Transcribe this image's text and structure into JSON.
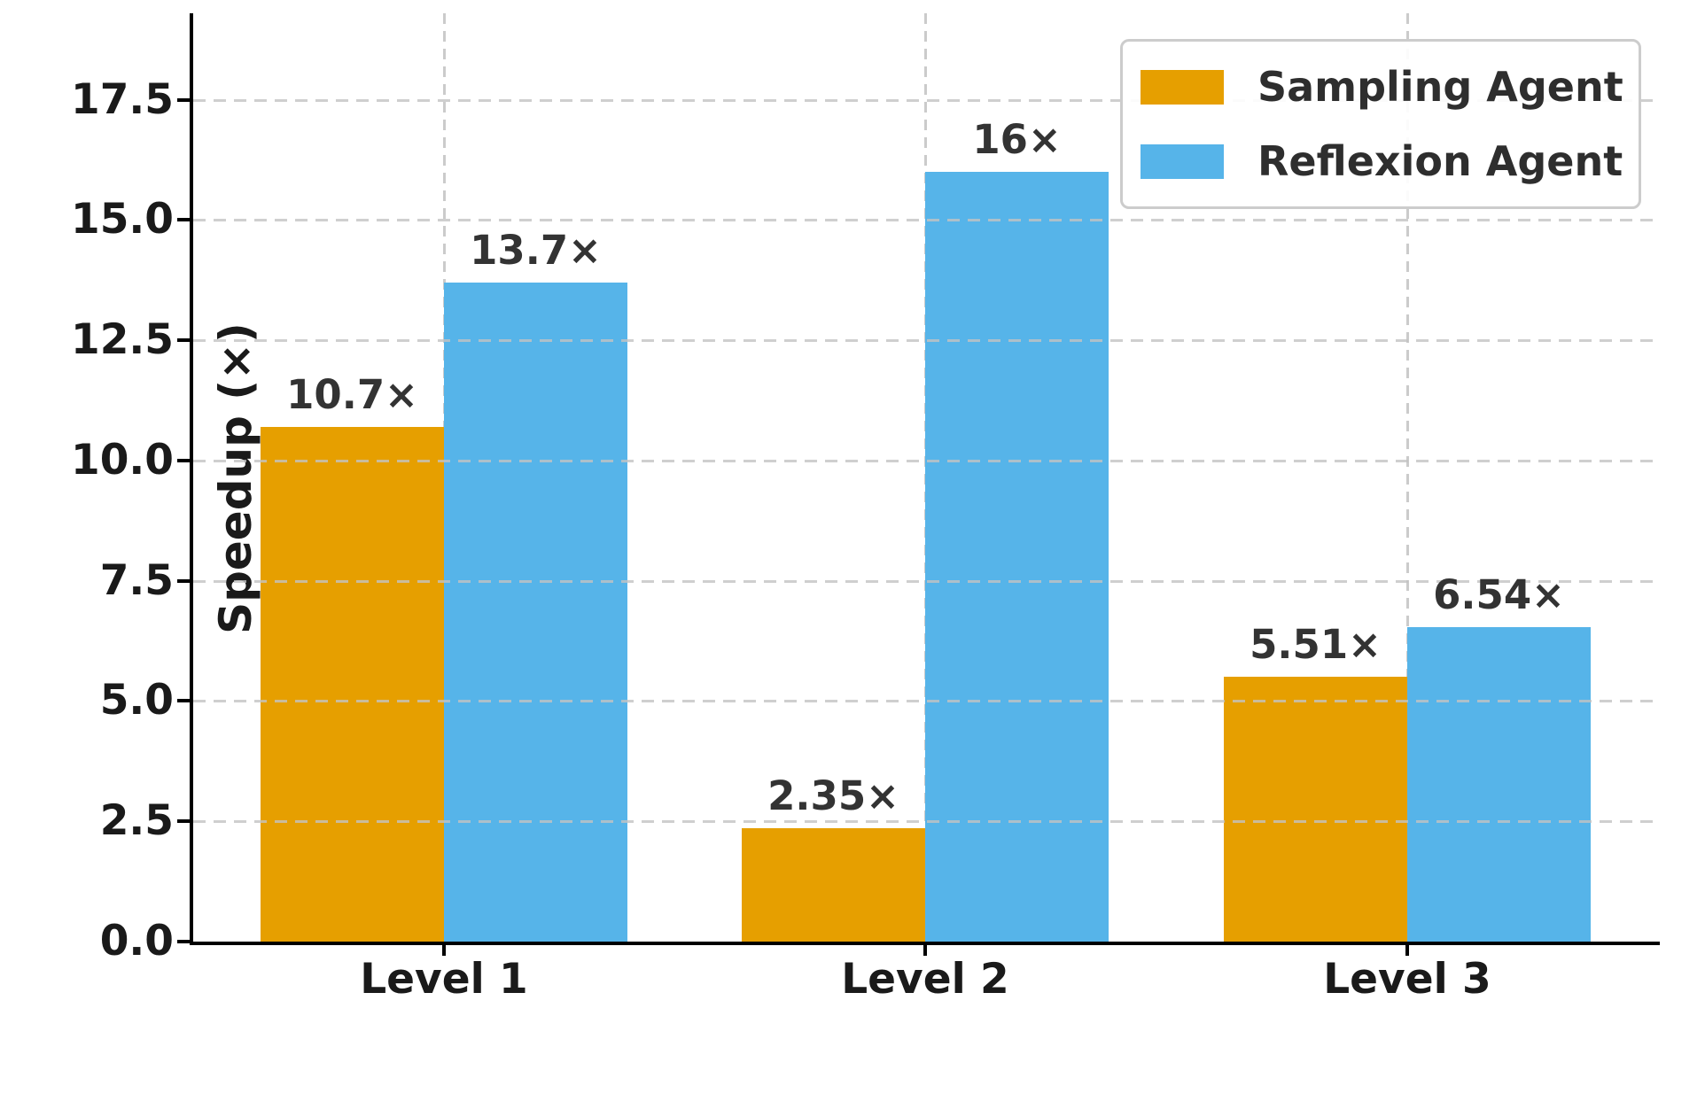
{
  "chart_data": {
    "type": "bar",
    "categories": [
      "Level 1",
      "Level 2",
      "Level 3"
    ],
    "series": [
      {
        "name": "Sampling Agent",
        "color": "#E69F00",
        "values": [
          10.7,
          2.35,
          5.51
        ],
        "value_labels": [
          "10.7×",
          "2.35×",
          "5.51×"
        ]
      },
      {
        "name": "Reflexion Agent",
        "color": "#56B4E9",
        "values": [
          13.7,
          16,
          6.54
        ],
        "value_labels": [
          "13.7×",
          "16×",
          "6.54×"
        ]
      }
    ],
    "title": "",
    "xlabel": "",
    "ylabel": "Speedup (×)",
    "ylim": [
      0,
      19.3
    ],
    "yticks": [
      0,
      2.5,
      5,
      7.5,
      10,
      12.5,
      15,
      17.5
    ],
    "ytick_labels": [
      "0.0",
      "2.5",
      "5.0",
      "7.5",
      "10.0",
      "12.5",
      "15.0",
      "17.5"
    ],
    "grid": "both, dashed, light-gray",
    "legend_position": "upper right",
    "axis_color": "#000000",
    "tick_label_color": "#1a1a1a",
    "value_label_color": "#333333"
  }
}
